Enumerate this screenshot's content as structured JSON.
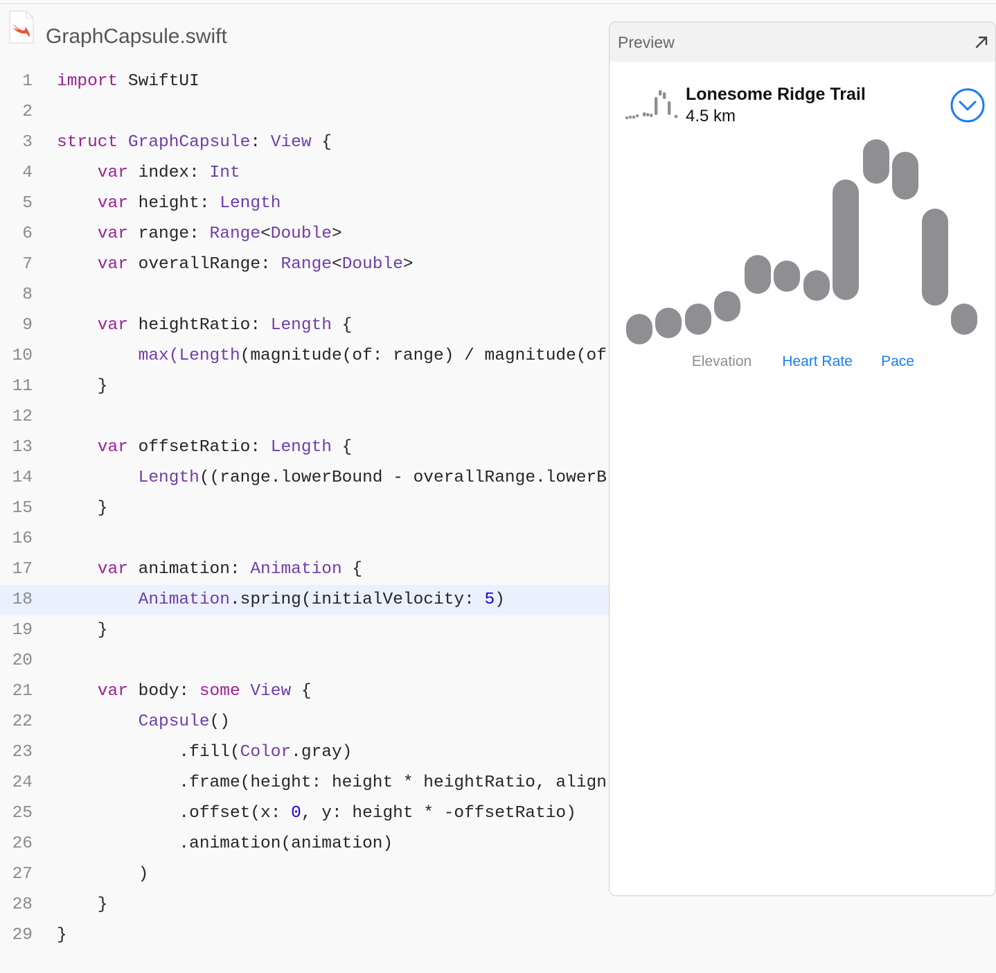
{
  "file_name": "GraphCapsule.swift",
  "code": {
    "lines": [
      {
        "number": 1,
        "tokens": [
          [
            "import",
            "#9b2393"
          ],
          [
            " SwiftUI"
          ]
        ]
      },
      {
        "number": 2,
        "tokens": []
      },
      {
        "number": 3,
        "tokens": [
          [
            "struct",
            "#9b2393"
          ],
          [
            " "
          ],
          [
            "GraphCapsule",
            "#703daa"
          ],
          [
            ": "
          ],
          [
            "View",
            "#703daa"
          ],
          [
            " {"
          ]
        ]
      },
      {
        "number": 4,
        "tokens": [
          [
            "    var",
            "#9b2393"
          ],
          [
            " index: "
          ],
          [
            "Int",
            "#703daa"
          ]
        ]
      },
      {
        "number": 5,
        "tokens": [
          [
            "    var",
            "#9b2393"
          ],
          [
            " height: "
          ],
          [
            "Length",
            "#703daa"
          ]
        ]
      },
      {
        "number": 6,
        "tokens": [
          [
            "    var",
            "#9b2393"
          ],
          [
            " range: "
          ],
          [
            "Range",
            "#703daa"
          ],
          [
            "<"
          ],
          [
            "Double",
            "#703daa"
          ],
          [
            ">"
          ]
        ]
      },
      {
        "number": 7,
        "tokens": [
          [
            "    var",
            "#9b2393"
          ],
          [
            " overallRange: "
          ],
          [
            "Range",
            "#703daa"
          ],
          [
            "<"
          ],
          [
            "Double",
            "#703daa"
          ],
          [
            ">"
          ]
        ]
      },
      {
        "number": 8,
        "tokens": []
      },
      {
        "number": 9,
        "tokens": [
          [
            "    var",
            "#9b2393"
          ],
          [
            " heightRatio: "
          ],
          [
            "Length",
            "#703daa"
          ],
          [
            " {"
          ]
        ]
      },
      {
        "number": 10,
        "tokens": [
          [
            "        max(",
            "#703daa"
          ],
          [
            "Length",
            "#703daa"
          ],
          [
            "(magnitude(of: range) / magnitude(of"
          ]
        ]
      },
      {
        "number": 11,
        "tokens": [
          [
            "    }"
          ]
        ]
      },
      {
        "number": 12,
        "tokens": []
      },
      {
        "number": 13,
        "tokens": [
          [
            "    var",
            "#9b2393"
          ],
          [
            " offsetRatio: "
          ],
          [
            "Length",
            "#703daa"
          ],
          [
            " {"
          ]
        ]
      },
      {
        "number": 14,
        "tokens": [
          [
            "        Length",
            "#703daa"
          ],
          [
            "((range.lowerBound - overallRange.lowerB"
          ]
        ]
      },
      {
        "number": 15,
        "tokens": [
          [
            "    }"
          ]
        ]
      },
      {
        "number": 16,
        "tokens": []
      },
      {
        "number": 17,
        "tokens": [
          [
            "    var",
            "#9b2393"
          ],
          [
            " animation: "
          ],
          [
            "Animation",
            "#703daa"
          ],
          [
            " {"
          ]
        ]
      },
      {
        "number": 18,
        "tokens": [
          [
            "        Animation",
            "#703daa"
          ],
          [
            ".spring(initialVelocity: "
          ],
          [
            "5",
            "#1c00cf"
          ],
          [
            ")"
          ]
        ],
        "highlighted": true
      },
      {
        "number": 19,
        "tokens": [
          [
            "    }"
          ]
        ]
      },
      {
        "number": 20,
        "tokens": []
      },
      {
        "number": 21,
        "tokens": [
          [
            "    var",
            "#9b2393"
          ],
          [
            " body: "
          ],
          [
            "some",
            "#9b2393"
          ],
          [
            " "
          ],
          [
            "View",
            "#703daa"
          ],
          [
            " {"
          ]
        ]
      },
      {
        "number": 22,
        "tokens": [
          [
            "        Capsule",
            "#703daa"
          ],
          [
            "()"
          ]
        ]
      },
      {
        "number": 23,
        "tokens": [
          [
            "            .fill("
          ],
          [
            "Color",
            "#703daa"
          ],
          [
            ".gray)"
          ]
        ]
      },
      {
        "number": 24,
        "tokens": [
          [
            "            .frame(height: height * heightRatio, align"
          ]
        ]
      },
      {
        "number": 25,
        "tokens": [
          [
            "            .offset(x: "
          ],
          [
            "0",
            "#1c00cf"
          ],
          [
            ", y: height * -offsetRatio)"
          ]
        ]
      },
      {
        "number": 26,
        "tokens": [
          [
            "            .animation(animation)"
          ]
        ]
      },
      {
        "number": 27,
        "tokens": [
          [
            "        )"
          ]
        ]
      },
      {
        "number": 28,
        "tokens": [
          [
            "    }"
          ]
        ]
      },
      {
        "number": 29,
        "tokens": [
          [
            "}"
          ]
        ]
      }
    ]
  },
  "preview": {
    "title": "Preview",
    "trail_name": "Lonesome Ridge Trail",
    "distance": "4.5 km",
    "tabs": [
      {
        "label": "Elevation",
        "color": "#8e8e93"
      },
      {
        "label": "Heart Rate",
        "color": "#1a7cf5"
      },
      {
        "label": "Pace",
        "color": "#1a7cf5"
      }
    ]
  }
}
